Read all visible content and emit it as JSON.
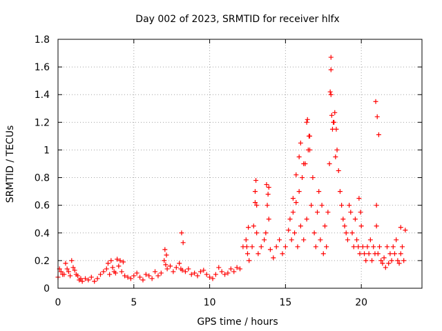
{
  "chart_data": {
    "type": "scatter",
    "title": "Day 002 of 2023, SRMTID for receiver hlfx",
    "xlabel": "GPS time / hours",
    "ylabel": "SRMTID / TECUs",
    "xlim": [
      0,
      24
    ],
    "ylim": [
      0,
      1.8
    ],
    "xticks": [
      0,
      5,
      10,
      15,
      20
    ],
    "xtick_labels": [
      "0",
      "5",
      "10",
      "15",
      "20"
    ],
    "yticks": [
      0,
      0.2,
      0.4,
      0.6,
      0.8,
      1,
      1.2,
      1.4,
      1.6,
      1.8
    ],
    "ytick_labels": [
      "0",
      "0.2",
      "0.4",
      "0.6",
      "0.8",
      "1",
      "1.2",
      "1.4",
      "1.6",
      "1.8"
    ],
    "grid": true,
    "marker": "plus",
    "marker_color": "#ff0000",
    "series": [
      {
        "name": "SRMTID",
        "x": [
          0.0,
          0.2,
          0.4,
          0.6,
          0.8,
          1.0,
          1.2,
          1.4,
          1.6,
          1.8,
          2.0,
          2.2,
          2.4,
          2.6,
          2.8,
          3.0,
          3.2,
          3.4,
          3.6,
          3.8,
          4.0,
          4.2,
          4.4,
          4.6,
          4.8,
          5.0,
          5.2,
          5.4,
          5.6,
          5.8,
          6.0,
          6.2,
          6.4,
          6.6,
          6.8,
          7.0,
          7.1,
          7.2,
          7.4,
          7.6,
          7.8,
          8.0,
          8.1,
          8.2,
          8.4,
          8.6,
          8.8,
          9.0,
          9.2,
          9.4,
          9.6,
          9.8,
          10.0,
          10.2,
          10.4,
          10.6,
          10.8,
          11.0,
          11.2,
          11.4,
          11.6,
          11.8,
          12.0,
          12.2,
          12.4,
          12.5,
          12.6,
          12.8,
          12.9,
          13.0,
          13.1,
          13.2,
          13.4,
          13.6,
          13.7,
          13.8,
          13.9,
          14.0,
          14.2,
          14.4,
          14.6,
          14.8,
          15.0,
          15.2,
          15.3,
          15.4,
          15.5,
          15.6,
          15.7,
          15.8,
          15.9,
          16.0,
          16.1,
          16.2,
          16.3,
          16.4,
          16.5,
          16.6,
          16.7,
          16.8,
          16.9,
          17.0,
          17.1,
          17.2,
          17.3,
          17.4,
          17.5,
          17.6,
          17.7,
          17.8,
          17.9,
          18.0,
          18.0,
          18.0,
          18.1,
          18.2,
          18.3,
          18.4,
          18.5,
          18.6,
          18.7,
          18.8,
          18.9,
          19.0,
          19.1,
          19.2,
          19.3,
          19.4,
          19.5,
          19.6,
          19.7,
          19.8,
          19.9,
          20.0,
          20.1,
          20.2,
          20.3,
          20.4,
          20.5,
          20.6,
          20.7,
          20.8,
          20.9,
          21.0,
          21.0,
          21.1,
          21.2,
          21.3,
          21.4,
          21.5,
          21.6,
          21.7,
          21.8,
          21.9,
          22.0,
          22.1,
          22.2,
          22.3,
          22.4,
          22.5,
          22.6,
          22.7,
          22.8,
          0.1,
          0.3,
          0.5,
          0.7,
          0.9,
          1.1,
          1.3,
          1.5,
          3.3,
          3.5,
          3.7,
          3.9,
          4.1,
          4.3,
          7.05,
          7.15,
          8.15,
          8.25,
          12.45,
          12.55,
          13.0,
          13.05,
          13.1,
          13.75,
          13.85,
          13.9,
          15.5,
          15.7,
          15.9,
          16.0,
          16.2,
          16.4,
          16.45,
          16.55,
          16.6,
          17.95,
          18.05,
          18.15,
          18.25,
          18.35,
          19.85,
          19.95,
          20.95,
          21.05,
          21.15,
          22.6,
          22.9
        ],
        "y": [
          0.08,
          0.12,
          0.1,
          0.14,
          0.09,
          0.15,
          0.1,
          0.06,
          0.05,
          0.07,
          0.06,
          0.08,
          0.05,
          0.07,
          0.1,
          0.12,
          0.14,
          0.1,
          0.15,
          0.11,
          0.16,
          0.12,
          0.09,
          0.08,
          0.07,
          0.09,
          0.11,
          0.08,
          0.06,
          0.1,
          0.09,
          0.07,
          0.12,
          0.09,
          0.11,
          0.2,
          0.17,
          0.14,
          0.16,
          0.12,
          0.15,
          0.18,
          0.14,
          0.13,
          0.12,
          0.14,
          0.1,
          0.11,
          0.09,
          0.12,
          0.13,
          0.1,
          0.08,
          0.07,
          0.1,
          0.15,
          0.12,
          0.1,
          0.11,
          0.14,
          0.12,
          0.15,
          0.14,
          0.3,
          0.35,
          0.25,
          0.2,
          0.3,
          0.45,
          0.62,
          0.4,
          0.25,
          0.3,
          0.35,
          0.4,
          0.6,
          0.5,
          0.28,
          0.22,
          0.3,
          0.35,
          0.25,
          0.3,
          0.42,
          0.5,
          0.35,
          0.55,
          0.4,
          0.62,
          0.3,
          0.7,
          0.45,
          0.8,
          0.35,
          0.9,
          0.5,
          1.0,
          1.1,
          0.6,
          0.8,
          0.4,
          0.3,
          0.55,
          0.7,
          0.35,
          0.6,
          0.25,
          0.45,
          0.3,
          0.55,
          0.9,
          1.4,
          1.58,
          1.67,
          1.15,
          1.2,
          0.95,
          1.0,
          0.85,
          0.7,
          0.6,
          0.5,
          0.45,
          0.4,
          0.35,
          0.6,
          0.55,
          0.4,
          0.3,
          0.5,
          0.35,
          0.3,
          0.25,
          0.45,
          0.3,
          0.25,
          0.2,
          0.3,
          0.25,
          0.35,
          0.2,
          0.3,
          0.25,
          0.6,
          0.45,
          0.25,
          0.3,
          0.2,
          0.18,
          0.22,
          0.15,
          0.3,
          0.18,
          0.25,
          0.2,
          0.3,
          0.25,
          0.35,
          0.2,
          0.18,
          0.25,
          0.3,
          0.2,
          0.14,
          0.1,
          0.18,
          0.12,
          0.2,
          0.13,
          0.09,
          0.07,
          0.18,
          0.2,
          0.12,
          0.21,
          0.2,
          0.19,
          0.28,
          0.24,
          0.4,
          0.33,
          0.3,
          0.44,
          0.7,
          0.78,
          0.6,
          0.75,
          0.68,
          0.73,
          0.65,
          0.82,
          0.95,
          1.05,
          0.9,
          1.2,
          1.22,
          1.1,
          1.0,
          1.42,
          1.25,
          1.2,
          1.27,
          1.15,
          0.65,
          0.55,
          1.35,
          1.24,
          1.11,
          0.44,
          0.42
        ]
      }
    ]
  }
}
